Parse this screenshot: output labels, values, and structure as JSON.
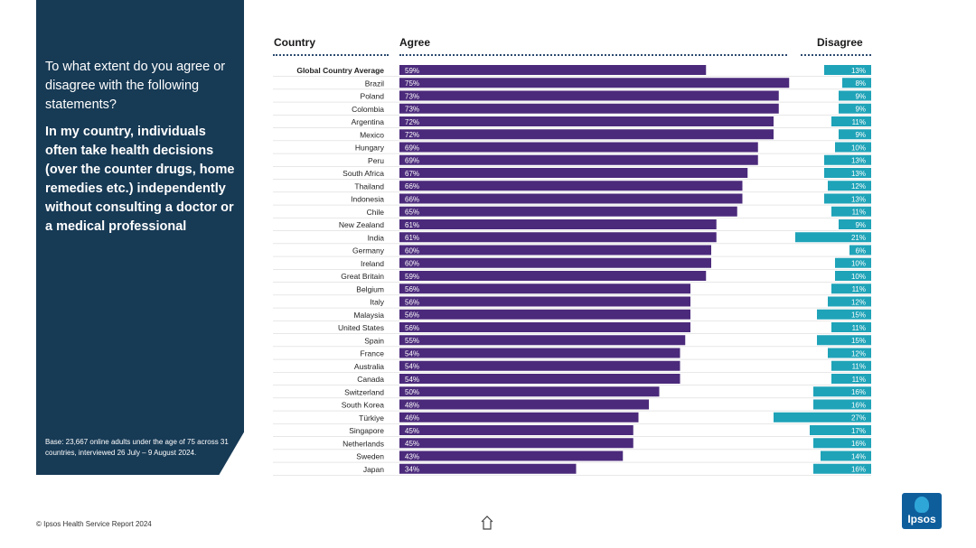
{
  "side_panel": {
    "question": "To what extent do you agree or disagree with the following statements?",
    "statement": "In my country, individuals often take health decisions (over the counter drugs, home remedies etc.) independently without consulting a doctor or a medical professional",
    "base_note": "Base: 23,667 online adults under the age of 75 across 31 countries, interviewed 26 July – 9 August 2024."
  },
  "footer": {
    "copyright": "© Ipsos Health Service Report 2024",
    "logo_text": "Ipsos"
  },
  "colors": {
    "panel": "#173a55",
    "agree": "#4b2a7b",
    "disagree": "#1fa3b8",
    "row_line": "#d9d9d9"
  },
  "chart_data": {
    "type": "bar",
    "orientation": "horizontal",
    "headers": {
      "country": "Country",
      "agree": "Agree",
      "disagree": "Disagree"
    },
    "categories": [
      "Global Country Average",
      "Brazil",
      "Poland",
      "Colombia",
      "Argentina",
      "Mexico",
      "Hungary",
      "Peru",
      "South Africa",
      "Thailand",
      "Indonesia",
      "Chile",
      "New Zealand",
      "India",
      "Germany",
      "Ireland",
      "Great Britain",
      "Belgium",
      "Italy",
      "Malaysia",
      "United States",
      "Spain",
      "France",
      "Australia",
      "Canada",
      "Switzerland",
      "South Korea",
      "Türkiye",
      "Singapore",
      "Netherlands",
      "Sweden",
      "Japan"
    ],
    "series": [
      {
        "name": "Agree",
        "values": [
          59,
          75,
          73,
          73,
          72,
          72,
          69,
          69,
          67,
          66,
          66,
          65,
          61,
          61,
          60,
          60,
          59,
          56,
          56,
          56,
          56,
          55,
          54,
          54,
          54,
          50,
          48,
          46,
          45,
          45,
          43,
          34
        ]
      },
      {
        "name": "Disagree",
        "values": [
          13,
          8,
          9,
          9,
          11,
          9,
          10,
          13,
          13,
          12,
          13,
          11,
          9,
          21,
          6,
          10,
          10,
          11,
          12,
          15,
          11,
          15,
          12,
          11,
          11,
          16,
          16,
          27,
          17,
          16,
          14,
          16
        ]
      }
    ],
    "value_suffix": "%",
    "agree_range": [
      0,
      100
    ],
    "disagree_range": [
      0,
      100
    ]
  }
}
